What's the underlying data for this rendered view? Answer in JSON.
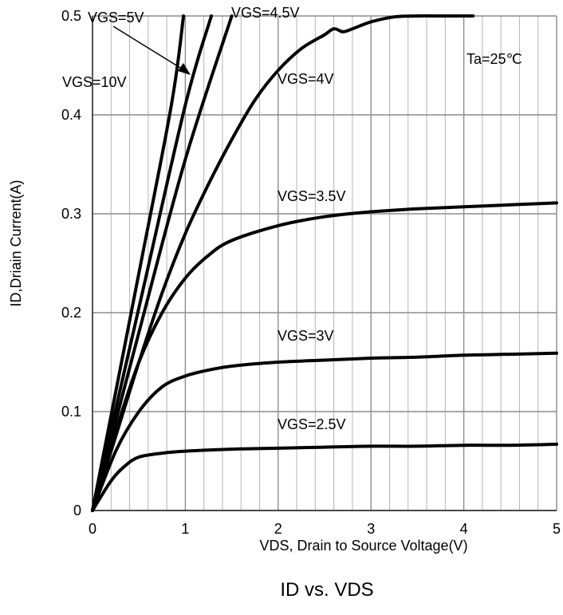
{
  "chart_data": {
    "type": "line",
    "title": "ID vs. VDS",
    "xlabel": "VDS, Drain to Source Voltage(V)",
    "ylabel": "ID,Driain Current(A)",
    "xlim": [
      0,
      5
    ],
    "ylim": [
      0,
      0.5
    ],
    "x_ticks": [
      0,
      1,
      2,
      3,
      4,
      5
    ],
    "y_ticks": [
      0,
      0.1,
      0.2,
      0.3,
      0.4,
      0.5
    ],
    "x_tick_labels": [
      "0",
      "1",
      "2",
      "3",
      "4",
      "5"
    ],
    "y_tick_labels": [
      "0",
      "0.1",
      "0.2",
      "0.3",
      "0.4",
      "0.5"
    ],
    "grid": true,
    "annotation": "Ta=25℃",
    "series": [
      {
        "name": "VGS=10V",
        "x": [
          0,
          0.5,
          0.85,
          0.98
        ],
        "y": [
          0,
          0.24,
          0.41,
          0.5
        ]
      },
      {
        "name": "VGS=5V",
        "x": [
          0,
          0.5,
          1.0,
          1.28
        ],
        "y": [
          0,
          0.205,
          0.41,
          0.5
        ]
      },
      {
        "name": "VGS=4.5V",
        "x": [
          0,
          0.5,
          1.0,
          1.5
        ],
        "y": [
          0,
          0.18,
          0.355,
          0.5
        ]
      },
      {
        "name": "VGS=4V",
        "x": [
          0,
          0.25,
          0.5,
          0.75,
          1.0,
          1.25,
          1.5,
          1.75,
          2.0,
          2.25,
          2.5,
          2.6,
          2.7,
          2.8,
          3.0,
          3.25,
          3.5,
          3.75,
          4.0,
          4.1
        ],
        "y": [
          0,
          0.075,
          0.15,
          0.22,
          0.28,
          0.33,
          0.375,
          0.415,
          0.445,
          0.467,
          0.481,
          0.487,
          0.484,
          0.487,
          0.494,
          0.499,
          0.5,
          0.5,
          0.5,
          0.5
        ]
      },
      {
        "name": "VGS=3.5V",
        "x": [
          0,
          0.25,
          0.5,
          0.75,
          1.0,
          1.25,
          1.5,
          2.0,
          2.5,
          3.0,
          3.5,
          4.0,
          4.5,
          5.0
        ],
        "y": [
          0,
          0.08,
          0.15,
          0.2,
          0.235,
          0.258,
          0.273,
          0.288,
          0.297,
          0.302,
          0.305,
          0.307,
          0.309,
          0.311
        ]
      },
      {
        "name": "VGS=3V",
        "x": [
          0,
          0.25,
          0.5,
          0.75,
          1.0,
          1.25,
          1.5,
          2.0,
          2.5,
          3.0,
          3.5,
          4.0,
          4.5,
          5.0
        ],
        "y": [
          0,
          0.06,
          0.1,
          0.125,
          0.136,
          0.142,
          0.146,
          0.15,
          0.152,
          0.154,
          0.155,
          0.157,
          0.158,
          0.159
        ]
      },
      {
        "name": "VGS=2.5V",
        "x": [
          0,
          0.2,
          0.35,
          0.5,
          0.75,
          1.0,
          1.5,
          2.0,
          2.5,
          3.0,
          3.5,
          4.0,
          4.5,
          5.0
        ],
        "y": [
          0,
          0.03,
          0.045,
          0.054,
          0.058,
          0.06,
          0.062,
          0.063,
          0.064,
          0.065,
          0.065,
          0.066,
          0.066,
          0.067
        ]
      }
    ]
  }
}
